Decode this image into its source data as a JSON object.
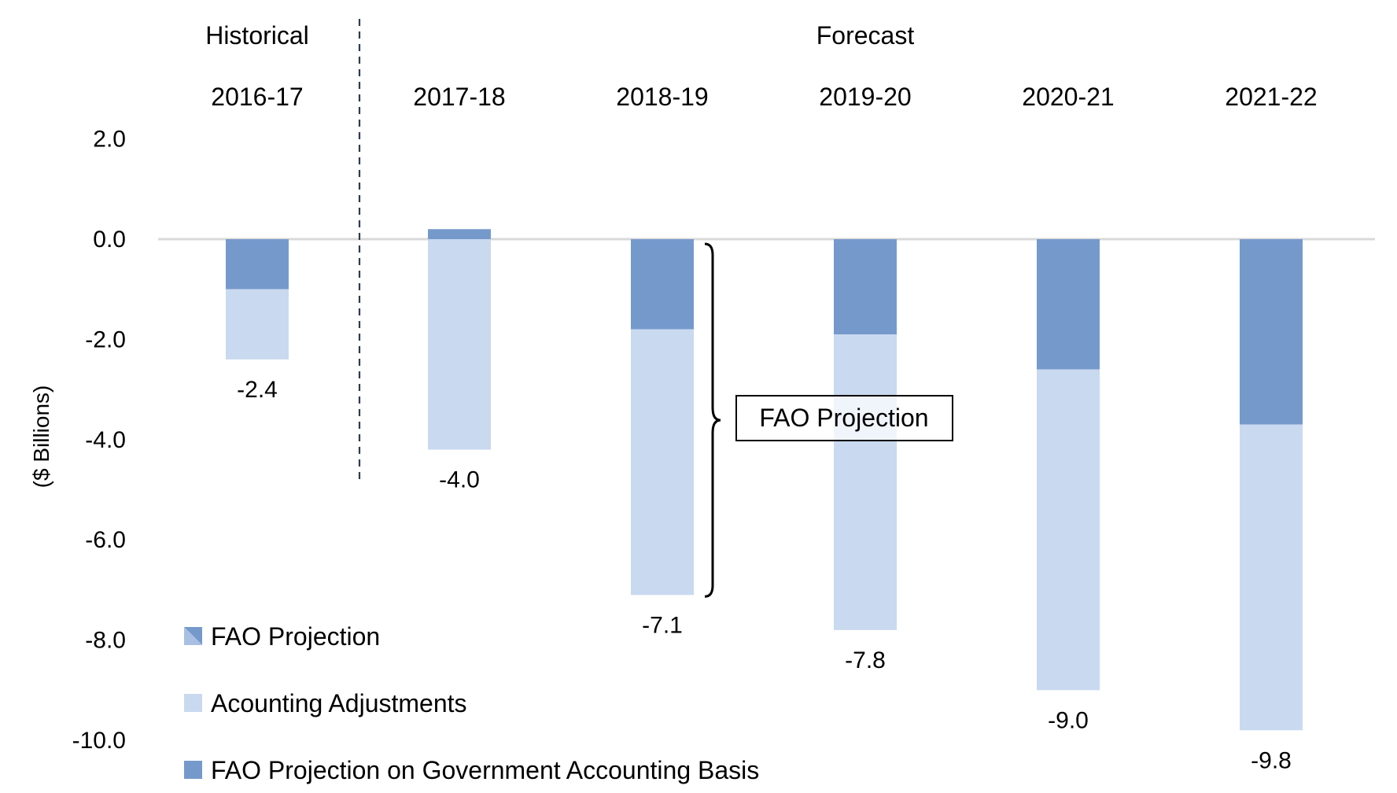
{
  "chart_data": {
    "type": "bar",
    "stacked": true,
    "title": "",
    "xlabel": "",
    "ylabel": "($ Billions)",
    "ylim": [
      -10.0,
      2.0
    ],
    "yticks": [
      "2.0",
      "0.0",
      "-2.0",
      "-4.0",
      "-6.0",
      "-8.0",
      "-10.0"
    ],
    "ytick_values": [
      2,
      0,
      -2,
      -4,
      -6,
      -8,
      -10
    ],
    "grid": false,
    "section_labels": [
      {
        "label": "Historical",
        "categories": [
          "2016-17"
        ]
      },
      {
        "label": "Forecast",
        "categories": [
          "2017-18",
          "2018-19",
          "2019-20",
          "2020-21",
          "2021-22"
        ]
      }
    ],
    "categories": [
      "2016-17",
      "2017-18",
      "2018-19",
      "2019-20",
      "2020-21",
      "2021-22"
    ],
    "series": [
      {
        "name": "FAO Projection on Government Accounting Basis",
        "color": "#7699CC",
        "values": [
          -1.0,
          0.2,
          -1.8,
          -1.9,
          -2.6,
          -3.7
        ]
      },
      {
        "name": "Acounting Adjustments",
        "color": "#C9D9EF",
        "values": [
          -1.4,
          -4.2,
          -5.3,
          -5.9,
          -6.4,
          -6.1
        ]
      }
    ],
    "totals": [
      -2.4,
      -4.0,
      -7.1,
      -7.8,
      -9.0,
      -9.8
    ],
    "total_labels": [
      "-2.4",
      "-4.0",
      "-7.1",
      "-7.8",
      "-9.0",
      "-9.8"
    ],
    "legend": {
      "placement": "bottom-left",
      "entries": [
        {
          "label": "FAO Projection",
          "swatch": "split",
          "colors": [
            "#7699CC",
            "#A9C0E3"
          ]
        },
        {
          "label": "Acounting Adjustments",
          "swatch": "solid",
          "colors": [
            "#C9D9EF"
          ]
        },
        {
          "label": "FAO Projection on Government Accounting Basis",
          "swatch": "solid",
          "colors": [
            "#7699CC"
          ]
        }
      ]
    },
    "annotation": {
      "text": "FAO Projection",
      "type": "brace",
      "spans_category": "2018-19",
      "range": [
        0,
        -7.1
      ]
    },
    "divider": {
      "style": "dashed",
      "between": [
        "2016-17",
        "2017-18"
      ],
      "color": "#2E3B4E"
    },
    "zero_line_color": "#D9D9D9"
  }
}
